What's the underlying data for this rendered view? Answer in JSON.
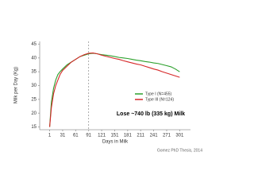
{
  "chart_data": {
    "type": "line",
    "xlabel": "Days in Milk",
    "ylabel": "Milk per Day (Kg)",
    "annotation": "Lose ~740 lb (335 kg) Milk",
    "source": "Gomez PhD Thesis, 2014",
    "x": [
      1,
      5,
      10,
      15,
      20,
      25,
      31,
      41,
      51,
      61,
      71,
      81,
      91,
      101,
      111,
      121,
      131,
      141,
      151,
      161,
      171,
      181,
      191,
      201,
      211,
      221,
      231,
      241,
      251,
      261,
      271,
      281,
      291,
      301
    ],
    "series": [
      {
        "name": "Type I (N=455)",
        "color": "#2ca02c",
        "values": [
          15,
          24,
          29,
          32,
          34,
          35,
          36,
          37.5,
          38.5,
          39.5,
          40.5,
          41,
          41.5,
          41.7,
          41.5,
          41.2,
          41,
          40.8,
          40.5,
          40.2,
          40,
          39.8,
          39.5,
          39.2,
          39,
          38.7,
          38.5,
          38.2,
          38,
          37.6,
          37.2,
          36.8,
          36,
          35
        ]
      },
      {
        "name": "Type III (N=124)",
        "color": "#d62728",
        "values": [
          15,
          22,
          27,
          30,
          32,
          34,
          35.5,
          37,
          38.5,
          39.5,
          40.5,
          41.2,
          41.7,
          41.8,
          41.5,
          41,
          40.6,
          40.2,
          39.8,
          39.5,
          39,
          38.6,
          38.2,
          37.8,
          37.5,
          37,
          36.5,
          36,
          35.6,
          35,
          34.5,
          34,
          33.5,
          33
        ]
      }
    ],
    "vline": 91,
    "xlim": [
      -22,
      326
    ],
    "xticks": [
      1,
      31,
      61,
      91,
      121,
      151,
      181,
      211,
      241,
      271,
      301
    ],
    "ylim": [
      14,
      46
    ],
    "yticks": [
      15,
      20,
      25,
      30,
      35,
      40,
      45
    ],
    "legend": "lower right"
  }
}
